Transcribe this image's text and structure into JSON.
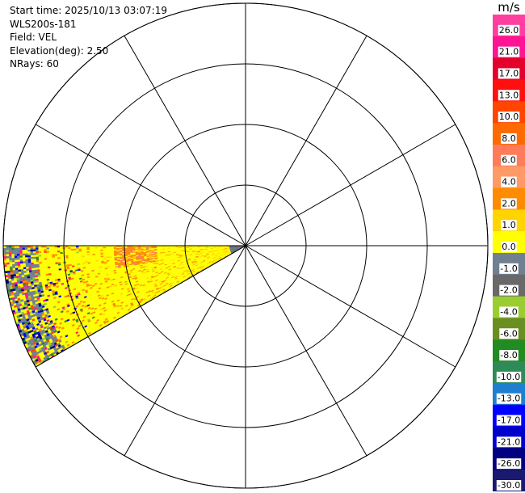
{
  "metadata": {
    "start_time": "Start time: 2025/10/13 03:07:19",
    "instrument": "WLS200s-181",
    "field": "Field: VEL",
    "elevation": "Elevation(deg): 2.50",
    "nrays": "NRays: 60"
  },
  "chart_data": {
    "type": "heatmap",
    "projection": "polar",
    "field": "VEL",
    "units": "m/s",
    "elevation_deg": 2.5,
    "nrays": 60,
    "sector_azimuth_deg": [
      240,
      270
    ],
    "range_rings": 4,
    "radial_lines_deg": [
      0,
      30,
      60,
      90,
      120,
      150,
      180,
      210,
      240,
      270,
      300,
      330
    ],
    "colorbar": {
      "label": "m/s",
      "ticks": [
        "26.0",
        "21.0",
        "17.0",
        "13.0",
        "10.0",
        "8.0",
        "6.0",
        "4.0",
        "2.0",
        "1.0",
        "0.0",
        "-1.0",
        "-2.0",
        "-4.0",
        "-6.0",
        "-8.0",
        "-10.0",
        "-13.0",
        "-17.0",
        "-21.0",
        "-26.0",
        "-30.0"
      ],
      "colors": [
        "#ff3fa0",
        "#ff1493",
        "#e4002a",
        "#ff1010",
        "#ff4500",
        "#ff6a00",
        "#ff7c5a",
        "#ff9966",
        "#ff8c00",
        "#ffd400",
        "#ffff00",
        "#708090",
        "#696969",
        "#9acd32",
        "#6b8e23",
        "#228b22",
        "#2e8b57",
        "#1e7fd0",
        "#0000ff",
        "#0000cd",
        "#000080",
        "#191970"
      ]
    }
  }
}
